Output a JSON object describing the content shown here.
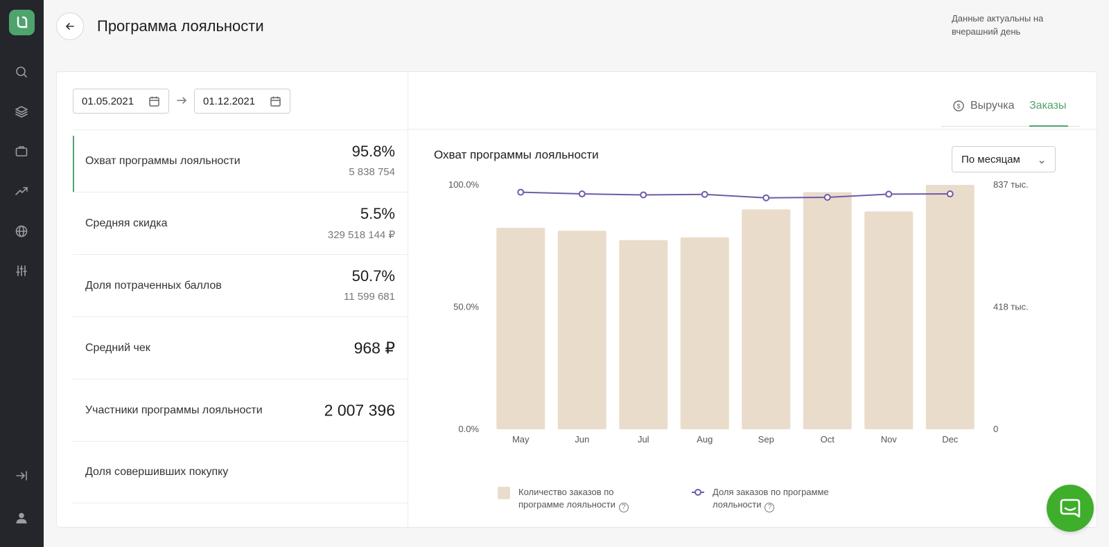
{
  "header": {
    "title": "Программа лояльности",
    "data_note": "Данные актуальны на вчерашний день"
  },
  "sidebar": {
    "icons": [
      "search-icon",
      "layers-icon",
      "briefcase-icon",
      "trend-icon",
      "globe-icon",
      "sliders-icon",
      "logout-icon",
      "user-icon"
    ]
  },
  "dates": {
    "from": "01.05.2021",
    "to": "01.12.2021"
  },
  "metrics": [
    {
      "label": "Охват программы лояльности",
      "value": "95.8%",
      "sub": "5 838 754"
    },
    {
      "label": "Средняя скидка",
      "value": "5.5%",
      "sub": "329 518 144 ₽"
    },
    {
      "label": "Доля потраченных баллов",
      "value": "50.7%",
      "sub": "11 599 681"
    },
    {
      "label": "Средний чек",
      "value": "968 ₽",
      "sub": ""
    },
    {
      "label": "Участники программы лояльности",
      "value": "2 007 396",
      "sub": ""
    },
    {
      "label": "Доля совершивших покупку",
      "value": "",
      "sub": ""
    }
  ],
  "tabs": {
    "revenue": "Выручка",
    "orders": "Заказы"
  },
  "chart_title": "Охват программы лояльности",
  "period_select": "По месяцам",
  "legend": {
    "bars": "Количество заказов по программе лояльности",
    "line": "Доля заказов по программе лояльности",
    "help": "?"
  },
  "colors": {
    "accent": "#4fa36d",
    "bar": "#eadccb",
    "line": "#6f5aa8",
    "chat": "#3fae2b"
  },
  "chart_data": {
    "type": "bar",
    "categories": [
      "May",
      "Jun",
      "Jul",
      "Aug",
      "Sep",
      "Oct",
      "Nov",
      "Dec"
    ],
    "series": [
      {
        "name": "Количество заказов по программе лояльности",
        "type": "bar",
        "axis": "right",
        "values": [
          690000,
          680000,
          648000,
          657000,
          753000,
          812000,
          746000,
          837000
        ]
      },
      {
        "name": "Доля заказов по программе лояльности",
        "type": "line",
        "axis": "left",
        "values": [
          97.0,
          96.3,
          95.9,
          96.1,
          94.7,
          94.9,
          96.2,
          96.3
        ]
      }
    ],
    "y_left": {
      "min": 0,
      "max": 100,
      "ticks": [
        "0.0%",
        "50.0%",
        "100.0%"
      ]
    },
    "y_right": {
      "min": 0,
      "max": 837000,
      "ticks": [
        "0",
        "418 тыс.",
        "837 тыс."
      ]
    },
    "grid": false,
    "legend_position": "bottom"
  }
}
